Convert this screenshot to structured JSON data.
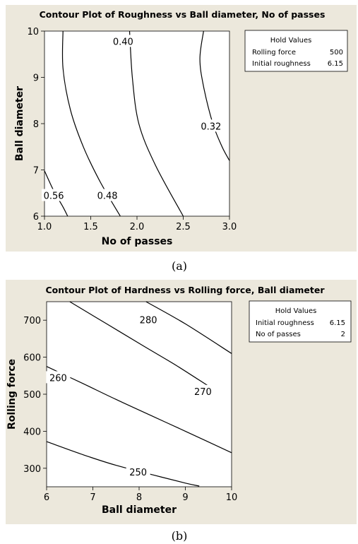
{
  "panels": [
    {
      "panel_label": "(a)",
      "hold_values": {
        "title": "Hold Values",
        "rows": [
          {
            "name": "Rolling force",
            "value": "500"
          },
          {
            "name": "Initial roughness",
            "value": "6.15"
          }
        ]
      }
    },
    {
      "panel_label": "(b)",
      "hold_values": {
        "title": "Hold Values",
        "rows": [
          {
            "name": "Initial roughness",
            "value": "6.15"
          },
          {
            "name": "No of passes",
            "value": "2"
          }
        ]
      }
    }
  ],
  "colors": {
    "panel_background": "#ece8dc",
    "plot_area": "#ffffff",
    "contour": "#000000"
  },
  "chart_data": [
    {
      "type": "contour",
      "title": "Contour Plot of Roughness vs Ball diameter, No of passes",
      "xlabel": "No of passes",
      "ylabel": "Ball diameter",
      "xlim": [
        1.0,
        3.0
      ],
      "ylim": [
        6,
        10
      ],
      "xticks": [
        "1.0",
        "1.5",
        "2.0",
        "2.5",
        "3.0"
      ],
      "yticks": [
        "6",
        "7",
        "8",
        "9",
        "10"
      ],
      "contours": [
        {
          "level": "0.56",
          "points": [
            [
              1.0,
              6.98
            ],
            [
              1.1,
              6.55
            ],
            [
              1.2,
              6.2
            ],
            [
              1.25,
              6.0
            ]
          ],
          "label_at": [
            1.1,
            6.45
          ]
        },
        {
          "level": "0.48",
          "points": [
            [
              1.2,
              10.0
            ],
            [
              1.2,
              9.2
            ],
            [
              1.28,
              8.3
            ],
            [
              1.42,
              7.5
            ],
            [
              1.6,
              6.75
            ],
            [
              1.82,
              6.0
            ]
          ],
          "label_at": [
            1.68,
            6.45
          ]
        },
        {
          "level": "0.40",
          "points": [
            [
              1.92,
              10.0
            ],
            [
              1.95,
              9.0
            ],
            [
              2.02,
              8.0
            ],
            [
              2.2,
              7.1
            ],
            [
              2.5,
              6.0
            ]
          ],
          "label_at": [
            1.85,
            9.78
          ]
        },
        {
          "level": "0.32",
          "points": [
            [
              2.72,
              10.0
            ],
            [
              2.68,
              9.4
            ],
            [
              2.72,
              8.8
            ],
            [
              2.82,
              8.0
            ],
            [
              2.92,
              7.5
            ],
            [
              3.0,
              7.2
            ]
          ],
          "label_at": [
            2.8,
            7.95
          ]
        }
      ]
    },
    {
      "type": "contour",
      "title": "Contour Plot of Hardness vs Rolling force, Ball diameter",
      "xlabel": "Ball diameter",
      "ylabel": "Rolling force",
      "xlim": [
        6,
        10
      ],
      "ylim": [
        250,
        750
      ],
      "xticks": [
        "6",
        "7",
        "8",
        "9",
        "10"
      ],
      "yticks": [
        "300",
        "400",
        "500",
        "600",
        "700"
      ],
      "contours": [
        {
          "level": "250",
          "points": [
            [
              6.0,
              372
            ],
            [
              6.8,
              336
            ],
            [
              7.5,
              308
            ],
            [
              8.3,
              282
            ],
            [
              9.0,
              260
            ],
            [
              9.3,
              252
            ]
          ],
          "label_at": [
            7.98,
            290
          ]
        },
        {
          "level": "260",
          "points": [
            [
              6.0,
              575
            ],
            [
              6.8,
              528
            ],
            [
              7.5,
              486
            ],
            [
              8.3,
              440
            ],
            [
              9.0,
              400
            ],
            [
              10.0,
              342
            ]
          ],
          "label_at": [
            6.25,
            545
          ]
        },
        {
          "level": "270",
          "points": [
            [
              6.5,
              750
            ],
            [
              7.3,
              690
            ],
            [
              8.1,
              630
            ],
            [
              8.8,
              578
            ],
            [
              9.5,
              522
            ]
          ],
          "label_at": [
            9.38,
            508
          ]
        },
        {
          "level": "280",
          "points": [
            [
              8.15,
              750
            ],
            [
              9.0,
              690
            ],
            [
              10.0,
              610
            ]
          ],
          "label_at": [
            8.2,
            701
          ]
        }
      ]
    }
  ]
}
